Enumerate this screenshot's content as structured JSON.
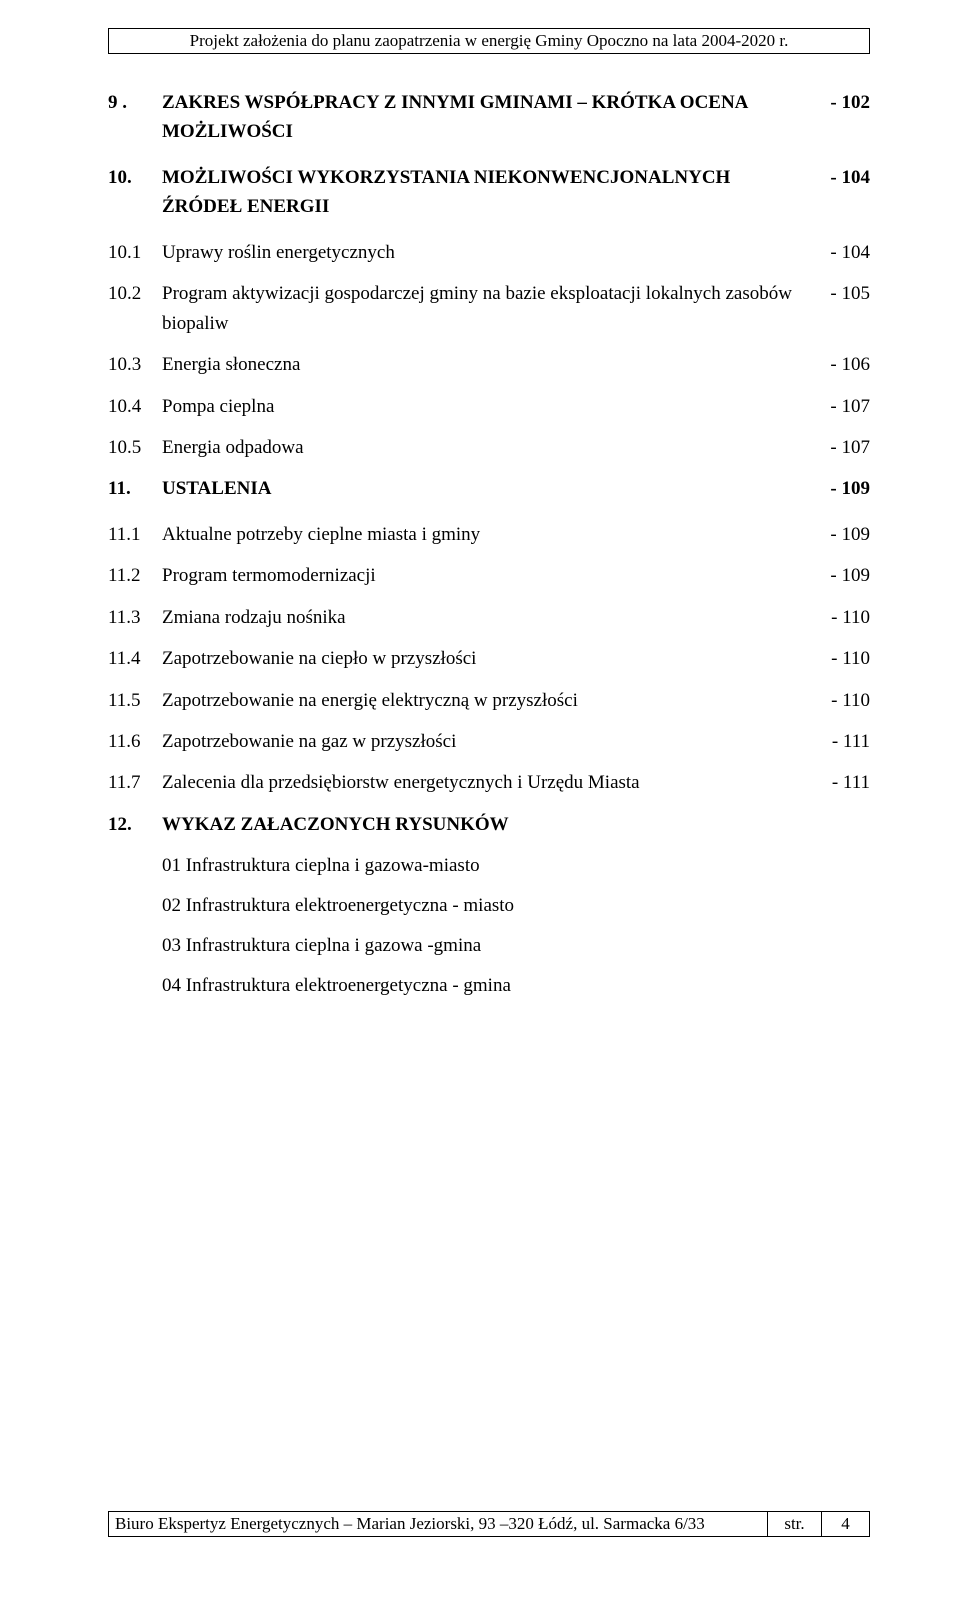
{
  "header": "Projekt założenia do planu zaopatrzenia w energię Gminy Opoczno na lata 2004-2020 r.",
  "toc": [
    {
      "num": "9 .",
      "text": "ZAKRES WSPÓŁPRACY Z INNYMI GMINAMI – KRÓTKA OCENA MOŻLIWOŚCI",
      "page": "- 102",
      "main": true
    },
    {
      "num": "10.",
      "text": "MOŻLIWOŚCI WYKORZYSTANIA NIEKONWENCJONALNYCH ŹRÓDEŁ ENERGII",
      "page": "- 104",
      "main": true
    },
    {
      "num": "10.1",
      "text": "Uprawy roślin energetycznych",
      "page": "- 104",
      "main": false
    },
    {
      "num": "10.2",
      "text": "Program aktywizacji gospodarczej gminy na bazie eksploatacji lokalnych zasobów biopaliw",
      "page": "- 105",
      "main": false
    },
    {
      "num": "10.3",
      "text": "Energia słoneczna",
      "page": "- 106",
      "main": false
    },
    {
      "num": "10.4",
      "text": "Pompa cieplna",
      "page": "- 107",
      "main": false
    },
    {
      "num": "10.5",
      "text": "Energia odpadowa",
      "page": "- 107",
      "main": false
    },
    {
      "num": "11.",
      "text": "USTALENIA",
      "page": "- 109",
      "main": true
    },
    {
      "num": "11.1",
      "text": "Aktualne potrzeby cieplne miasta i gminy",
      "page": "- 109",
      "main": false
    },
    {
      "num": "11.2",
      "text": "Program termomodernizacji",
      "page": "- 109",
      "main": false
    },
    {
      "num": "11.3",
      "text": "Zmiana rodzaju nośnika",
      "page": "- 110",
      "main": false
    },
    {
      "num": "11.4",
      "text": "Zapotrzebowanie na ciepło w przyszłości",
      "page": "- 110",
      "main": false
    },
    {
      "num": "11.5",
      "text": "Zapotrzebowanie na energię elektryczną w przyszłości",
      "page": "- 110",
      "main": false
    },
    {
      "num": "11.6",
      "text": "Zapotrzebowanie na gaz w przyszłości",
      "page": "- 111",
      "main": false
    },
    {
      "num": "11.7",
      "text": "Zalecenia dla przedsiębiorstw energetycznych i Urzędu Miasta",
      "page": "- 111",
      "main": false
    },
    {
      "num": "12.",
      "text": "WYKAZ ZAŁACZONYCH RYSUNKÓW",
      "page": "",
      "main": true
    }
  ],
  "sublist": [
    "01  Infrastruktura cieplna i gazowa-miasto",
    "02  Infrastruktura elektroenergetyczna  - miasto",
    "03  Infrastruktura cieplna i gazowa -gmina",
    "04  Infrastruktura elektroenergetyczna - gmina"
  ],
  "footer": {
    "left": "Biuro Ekspertyz Energetycznych – Marian Jeziorski, 93 –320 Łódź, ul. Sarmacka 6/33",
    "label": "str.",
    "page": "4"
  }
}
